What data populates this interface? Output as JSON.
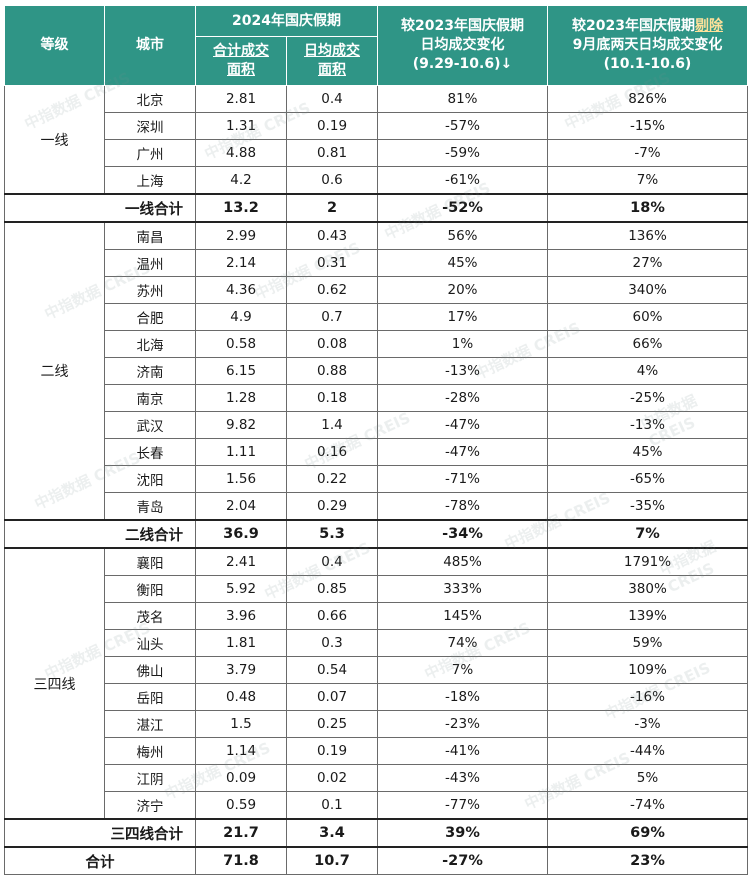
{
  "header": {
    "tier": "等级",
    "city": "城市",
    "group_2024": "2024年国庆假期",
    "total_area": "合计成交面积",
    "daily_area": "日均成交面积",
    "vs2023_l1": "较2023年国庆假期",
    "vs2023_l2": "日均成交变化",
    "vs2023_l3": "(9.29-10.6)↓",
    "vs2023x_l1a": "较2023年国庆假期",
    "vs2023x_l1b": "剔除",
    "vs2023x_l2": "9月底两天日均成交变化",
    "vs2023x_l3": "(10.1-10.6)"
  },
  "groups": [
    {
      "tier": "一线",
      "rows": [
        {
          "city": "北京",
          "total": "2.81",
          "daily": "0.4",
          "chg": "81%",
          "chg2": "826%"
        },
        {
          "city": "深圳",
          "total": "1.31",
          "daily": "0.19",
          "chg": "-57%",
          "chg2": "-15%"
        },
        {
          "city": "广州",
          "total": "4.88",
          "daily": "0.81",
          "chg": "-59%",
          "chg2": "-7%"
        },
        {
          "city": "上海",
          "total": "4.2",
          "daily": "0.6",
          "chg": "-61%",
          "chg2": "7%"
        }
      ],
      "subtotal": {
        "label": "一线合计",
        "total": "13.2",
        "daily": "2",
        "chg": "-52%",
        "chg2": "18%"
      }
    },
    {
      "tier": "二线",
      "rows": [
        {
          "city": "南昌",
          "total": "2.99",
          "daily": "0.43",
          "chg": "56%",
          "chg2": "136%"
        },
        {
          "city": "温州",
          "total": "2.14",
          "daily": "0.31",
          "chg": "45%",
          "chg2": "27%"
        },
        {
          "city": "苏州",
          "total": "4.36",
          "daily": "0.62",
          "chg": "20%",
          "chg2": "340%"
        },
        {
          "city": "合肥",
          "total": "4.9",
          "daily": "0.7",
          "chg": "17%",
          "chg2": "60%"
        },
        {
          "city": "北海",
          "total": "0.58",
          "daily": "0.08",
          "chg": "1%",
          "chg2": "66%"
        },
        {
          "city": "济南",
          "total": "6.15",
          "daily": "0.88",
          "chg": "-13%",
          "chg2": "4%"
        },
        {
          "city": "南京",
          "total": "1.28",
          "daily": "0.18",
          "chg": "-28%",
          "chg2": "-25%"
        },
        {
          "city": "武汉",
          "total": "9.82",
          "daily": "1.4",
          "chg": "-47%",
          "chg2": "-13%"
        },
        {
          "city": "长春",
          "total": "1.11",
          "daily": "0.16",
          "chg": "-47%",
          "chg2": "45%"
        },
        {
          "city": "沈阳",
          "total": "1.56",
          "daily": "0.22",
          "chg": "-71%",
          "chg2": "-65%"
        },
        {
          "city": "青岛",
          "total": "2.04",
          "daily": "0.29",
          "chg": "-78%",
          "chg2": "-35%"
        }
      ],
      "subtotal": {
        "label": "二线合计",
        "total": "36.9",
        "daily": "5.3",
        "chg": "-34%",
        "chg2": "7%"
      }
    },
    {
      "tier": "三四线",
      "rows": [
        {
          "city": "襄阳",
          "total": "2.41",
          "daily": "0.4",
          "chg": "485%",
          "chg2": "1791%"
        },
        {
          "city": "衡阳",
          "total": "5.92",
          "daily": "0.85",
          "chg": "333%",
          "chg2": "380%"
        },
        {
          "city": "茂名",
          "total": "3.96",
          "daily": "0.66",
          "chg": "145%",
          "chg2": "139%"
        },
        {
          "city": "汕头",
          "total": "1.81",
          "daily": "0.3",
          "chg": "74%",
          "chg2": "59%"
        },
        {
          "city": "佛山",
          "total": "3.79",
          "daily": "0.54",
          "chg": "7%",
          "chg2": "109%"
        },
        {
          "city": "岳阳",
          "total": "0.48",
          "daily": "0.07",
          "chg": "-18%",
          "chg2": "-16%"
        },
        {
          "city": "湛江",
          "total": "1.5",
          "daily": "0.25",
          "chg": "-23%",
          "chg2": "-3%"
        },
        {
          "city": "梅州",
          "total": "1.14",
          "daily": "0.19",
          "chg": "-41%",
          "chg2": "-44%"
        },
        {
          "city": "江阴",
          "total": "0.09",
          "daily": "0.02",
          "chg": "-43%",
          "chg2": "5%"
        },
        {
          "city": "济宁",
          "total": "0.59",
          "daily": "0.1",
          "chg": "-77%",
          "chg2": "-74%"
        }
      ],
      "subtotal": {
        "label": "三四线合计",
        "total": "21.7",
        "daily": "3.4",
        "chg": "39%",
        "chg2": "69%"
      }
    }
  ],
  "total": {
    "label": "合计",
    "total": "71.8",
    "daily": "10.7",
    "chg": "-27%",
    "chg2": "23%"
  },
  "watermark_text": "中指数据 CREIS",
  "colors": {
    "header_bg": "#2f9586",
    "header_text": "#ffffff",
    "highlight": "#ffe19a"
  }
}
